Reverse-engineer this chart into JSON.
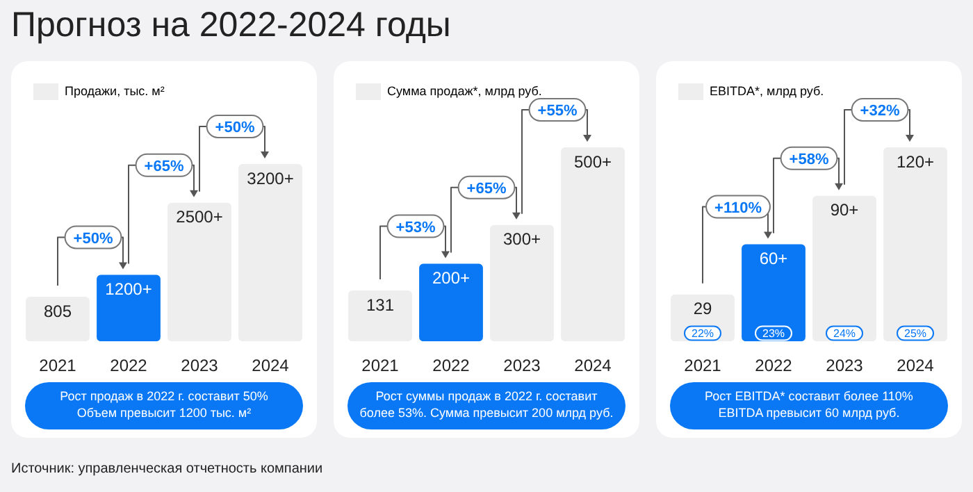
{
  "chart_data": [
    {
      "type": "other",
      "title": "Прогноз на 2022-2024 годы",
      "annotations": [
        "Источник: управленческая отчетность компании"
      ]
    },
    {
      "type": "bar",
      "tick_labels": "x",
      "legend": "top left",
      "categories": [
        "2021",
        "2022",
        "2023",
        "2024"
      ],
      "series": [
        {
          "name": "Продажи, тыс. м²",
          "color": "#eeeeee",
          "colors": [
            "#eeeeee",
            "#0a78f5",
            "#eeeeee",
            "#eeeeee"
          ],
          "values": [
            805,
            1200,
            2500,
            3200
          ],
          "value_labels": [
            "805",
            "1200+",
            "2500+",
            "3200+"
          ]
        }
      ],
      "annotations": [
        "+50%",
        "+65%",
        "+50%",
        "Рост продаж в 2022 г. составит 50%\nОбъем превысит 1200 тыс. м²"
      ]
    },
    {
      "type": "bar",
      "tick_labels": "x",
      "legend": "top left",
      "categories": [
        "2021",
        "2022",
        "2023",
        "2024"
      ],
      "series": [
        {
          "name": "Сумма продаж*, млрд руб.",
          "color": "#eeeeee",
          "colors": [
            "#eeeeee",
            "#0a78f5",
            "#eeeeee",
            "#eeeeee"
          ],
          "values": [
            131,
            200,
            300,
            500
          ],
          "value_labels": [
            "131",
            "200+",
            "300+",
            "500+"
          ]
        }
      ],
      "annotations": [
        "+53%",
        "+65%",
        "+55%",
        "Рост суммы продаж в 2022 г. составит\nболее 53%. Сумма превысит 200 млрд руб."
      ]
    },
    {
      "type": "bar",
      "tick_labels": "x",
      "legend": "top left",
      "categories": [
        "2021",
        "2022",
        "2023",
        "2024"
      ],
      "series": [
        {
          "name": "EBITDA*, млрд руб.",
          "color": "#eeeeee",
          "colors": [
            "#eeeeee",
            "#0a78f5",
            "#eeeeee",
            "#eeeeee"
          ],
          "values": [
            29,
            60,
            90,
            120
          ],
          "value_labels": [
            "29",
            "60+",
            "90+",
            "120+"
          ]
        }
      ],
      "annotations": [
        "+110%",
        "+58%",
        "+32%",
        {
          "text": "22%",
          "x": "2021",
          "y": 5
        },
        {
          "text": "23%",
          "x": "2022",
          "y": 5
        },
        {
          "text": "24%",
          "x": "2023",
          "y": 5
        },
        {
          "text": "25%",
          "x": "2024",
          "y": 5
        },
        "Рост EBITDA* составит более 110%\nEBITDA превысит 60 млрд руб."
      ]
    }
  ]
}
